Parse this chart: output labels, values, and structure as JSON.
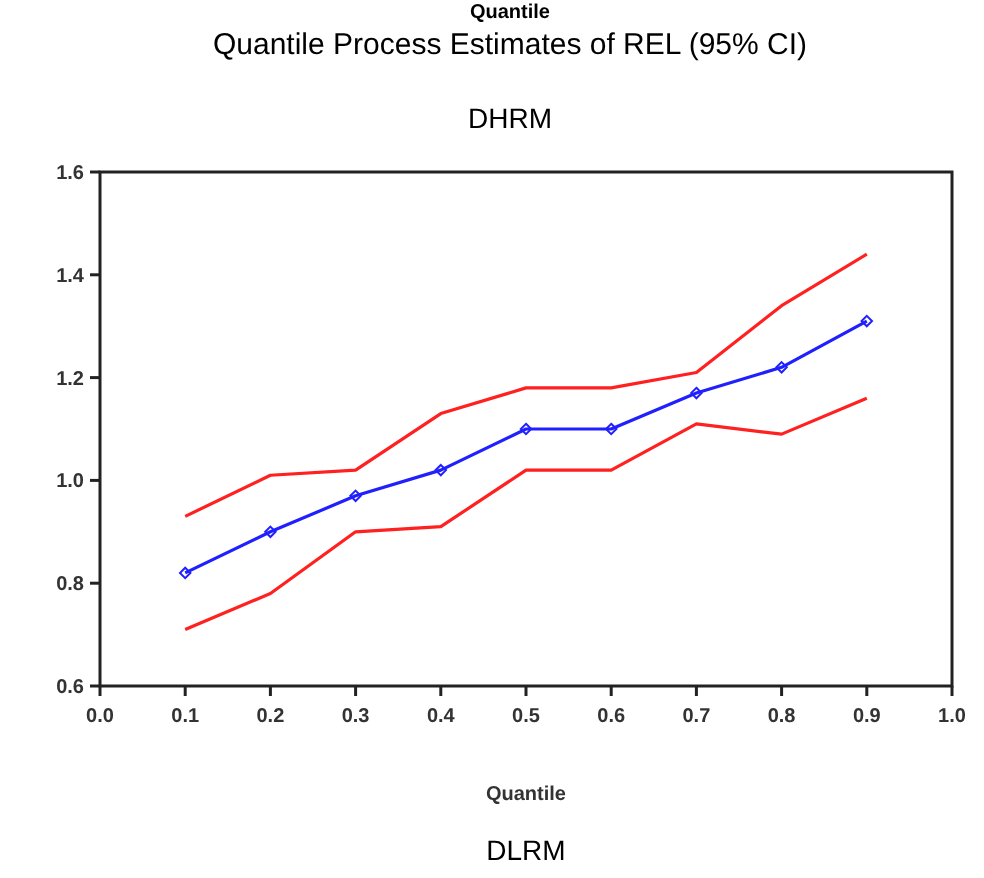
{
  "chart_data": {
    "type": "line",
    "title": "Quantile Process Estimates of REL (95% CI)",
    "subtitle": "DHRM",
    "xlabel": "Quantile",
    "annotations": [
      "Quantile",
      "DLRM"
    ],
    "x": [
      0.1,
      0.2,
      0.3,
      0.4,
      0.5,
      0.6,
      0.7,
      0.8,
      0.9
    ],
    "series": [
      {
        "color": "#ff2020",
        "values": [
          0.93,
          1.01,
          1.02,
          1.13,
          1.18,
          1.18,
          1.21,
          1.34,
          1.44
        ],
        "marker": "none"
      },
      {
        "color": "#2020ff",
        "values": [
          0.82,
          0.9,
          0.97,
          1.02,
          1.1,
          1.1,
          1.17,
          1.22,
          1.31
        ],
        "marker": "diamond"
      },
      {
        "color": "#ff2020",
        "values": [
          0.71,
          0.78,
          0.9,
          0.91,
          1.02,
          1.02,
          1.11,
          1.09,
          1.16
        ],
        "marker": "none"
      }
    ],
    "xlim": [
      0,
      1
    ],
    "xticks": [
      {
        "value": 0,
        "label": "0.0"
      },
      0.1,
      0.2,
      0.3,
      0.4,
      0.5,
      0.6,
      0.7,
      0.8,
      0.9,
      {
        "value": 1,
        "label": "1.0"
      }
    ],
    "ylim": [
      0.6,
      1.6
    ],
    "yticks": [
      0.6,
      0.8,
      {
        "value": 1,
        "label": "1.0"
      },
      1.2,
      1.4,
      1.6
    ],
    "grid": false
  }
}
